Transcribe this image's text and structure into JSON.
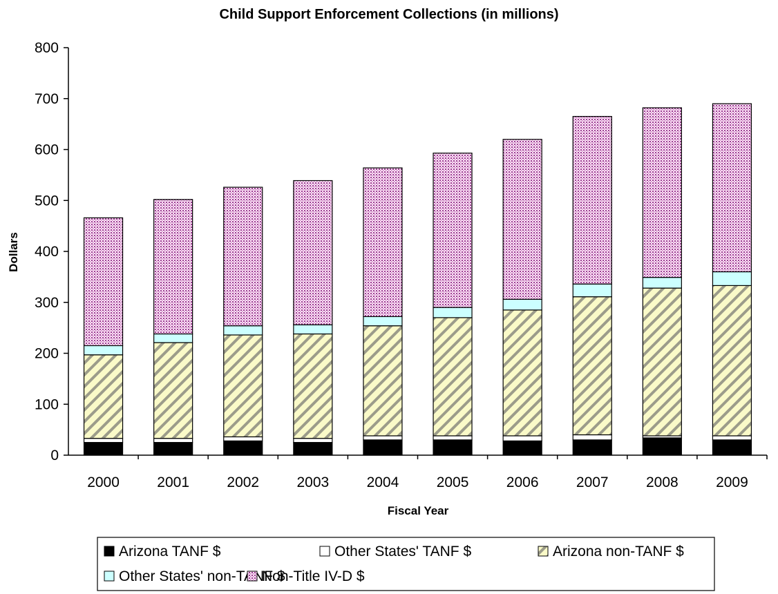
{
  "chart_data": {
    "type": "bar",
    "stacked": true,
    "title": "Child Support Enforcement Collections (in millions)",
    "xlabel": "Fiscal Year",
    "ylabel": "Dollars",
    "ylim": [
      0,
      800
    ],
    "yticks": [
      "0",
      "100",
      "200",
      "300",
      "400",
      "500",
      "600",
      "700",
      "800"
    ],
    "categories": [
      "2000",
      "2001",
      "2002",
      "2003",
      "2004",
      "2005",
      "2006",
      "2007",
      "2008",
      "2009"
    ],
    "grid": false,
    "legend_position": "bottom",
    "series": [
      {
        "name": "Arizona TANF $",
        "color": "#000000",
        "pattern": "solid",
        "values": [
          25,
          25,
          28,
          25,
          30,
          30,
          28,
          30,
          34,
          30
        ]
      },
      {
        "name": "Other States' TANF $",
        "color": "#ffffff",
        "pattern": "solid",
        "values": [
          8,
          8,
          8,
          8,
          8,
          8,
          10,
          10,
          4,
          8
        ]
      },
      {
        "name": "Arizona non-TANF $",
        "color": "#fafac8",
        "pattern": "diagonal-stripes",
        "values": [
          164,
          188,
          200,
          205,
          216,
          232,
          247,
          271,
          290,
          295
        ]
      },
      {
        "name": "Other States' non-TANF $",
        "color": "#ccffff",
        "pattern": "solid",
        "values": [
          18,
          17,
          18,
          18,
          18,
          20,
          21,
          25,
          21,
          27
        ]
      },
      {
        "name": "Non-Title IV-D $",
        "color": "#ff99cc",
        "pattern": "dots",
        "values": [
          251,
          264,
          272,
          283,
          292,
          303,
          314,
          329,
          333,
          330
        ]
      }
    ]
  }
}
